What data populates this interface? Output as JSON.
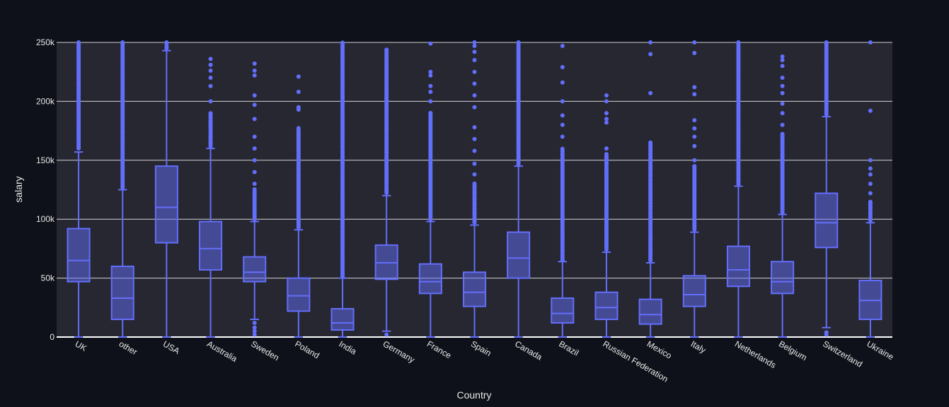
{
  "chart_data": {
    "type": "box",
    "xlabel": "Country",
    "ylabel": "salary",
    "ylim": [
      0,
      250000
    ],
    "yticks": [
      0,
      50000,
      100000,
      150000,
      200000,
      250000
    ],
    "ytick_labels": [
      "0",
      "50k",
      "100k",
      "150k",
      "200k",
      "250k"
    ],
    "grid": true,
    "colors": {
      "box": "#636efa",
      "plot_bg": "#262731",
      "page_bg": "#0e1119",
      "grid": "#ffffff"
    },
    "categories": [
      "UK",
      "other",
      "USA",
      "Australia",
      "Sweden",
      "Poland",
      "India",
      "Germany",
      "France",
      "Spain",
      "Canada",
      "Brazil",
      "Russian Federation",
      "Mexico",
      "Italy",
      "Netherlands",
      "Belgium",
      "Switzerland",
      "Ukraine"
    ],
    "boxes": [
      {
        "category": "UK",
        "lower_fence": 0,
        "q1": 47000,
        "median": 65000,
        "q3": 92000,
        "upper_fence": 157000,
        "outliers_range": [
          160000,
          250000
        ],
        "outliers": []
      },
      {
        "category": "other",
        "lower_fence": 0,
        "q1": 15000,
        "median": 33000,
        "q3": 60000,
        "upper_fence": 125000,
        "outliers_range": [
          127000,
          250000
        ],
        "outliers": []
      },
      {
        "category": "USA",
        "lower_fence": 0,
        "q1": 80000,
        "median": 110000,
        "q3": 145000,
        "upper_fence": 243000,
        "outliers_range": [
          245000,
          250000
        ],
        "outliers": []
      },
      {
        "category": "Australia",
        "lower_fence": 0,
        "q1": 57000,
        "median": 75000,
        "q3": 98000,
        "upper_fence": 160000,
        "outliers_range": [
          162000,
          190000
        ],
        "outliers": [
          200000,
          213000,
          220000,
          226000,
          231000,
          236000
        ]
      },
      {
        "category": "Sweden",
        "lower_fence": 15000,
        "q1": 47000,
        "median": 55000,
        "q3": 68000,
        "upper_fence": 98000,
        "outliers_range": [
          100000,
          125000
        ],
        "outliers": [
          2000,
          5000,
          8000,
          12000,
          130000,
          140000,
          150000,
          160000,
          170000,
          185000,
          197000,
          205000,
          222000,
          226000,
          232000
        ]
      },
      {
        "category": "Poland",
        "lower_fence": 0,
        "q1": 22000,
        "median": 35000,
        "q3": 50000,
        "upper_fence": 91000,
        "outliers_range": [
          93000,
          177000
        ],
        "outliers": [
          193000,
          195000,
          208000,
          221000
        ]
      },
      {
        "category": "India",
        "lower_fence": 0,
        "q1": 6000,
        "median": 12000,
        "q3": 24000,
        "upper_fence": 50000,
        "outliers_range": [
          51000,
          250000
        ],
        "outliers": []
      },
      {
        "category": "Germany",
        "lower_fence": 5000,
        "q1": 49000,
        "median": 63000,
        "q3": 78000,
        "upper_fence": 120000,
        "outliers_range": [
          122000,
          244000
        ],
        "outliers": [
          2000
        ]
      },
      {
        "category": "France",
        "lower_fence": 0,
        "q1": 37000,
        "median": 47000,
        "q3": 62000,
        "upper_fence": 98000,
        "outliers_range": [
          100000,
          190000
        ],
        "outliers": [
          200000,
          208000,
          213000,
          222000,
          225000,
          249000
        ]
      },
      {
        "category": "Spain",
        "lower_fence": 0,
        "q1": 26000,
        "median": 38000,
        "q3": 55000,
        "upper_fence": 95000,
        "outliers_range": [
          97000,
          130000
        ],
        "outliers": [
          138000,
          147000,
          158000,
          168000,
          178000,
          195000,
          205000,
          215000,
          225000,
          235000,
          242000,
          247000,
          250000
        ]
      },
      {
        "category": "Canada",
        "lower_fence": 0,
        "q1": 50000,
        "median": 67000,
        "q3": 89000,
        "upper_fence": 145000,
        "outliers_range": [
          147000,
          250000
        ],
        "outliers": []
      },
      {
        "category": "Brazil",
        "lower_fence": 0,
        "q1": 12000,
        "median": 20000,
        "q3": 33000,
        "upper_fence": 64000,
        "outliers_range": [
          65000,
          160000
        ],
        "outliers": [
          170000,
          180000,
          188000,
          200000,
          216000,
          229000,
          247000
        ]
      },
      {
        "category": "Russian Federation",
        "lower_fence": 0,
        "q1": 15000,
        "median": 25000,
        "q3": 38000,
        "upper_fence": 72000,
        "outliers_range": [
          74000,
          155000
        ],
        "outliers": [
          160000,
          182000,
          185000,
          190000,
          200000,
          205000
        ]
      },
      {
        "category": "Mexico",
        "lower_fence": 0,
        "q1": 11000,
        "median": 19000,
        "q3": 32000,
        "upper_fence": 63000,
        "outliers_range": [
          65000,
          165000
        ],
        "outliers": [
          207000,
          240000,
          250000
        ]
      },
      {
        "category": "Italy",
        "lower_fence": 0,
        "q1": 26000,
        "median": 36000,
        "q3": 52000,
        "upper_fence": 89000,
        "outliers_range": [
          91000,
          145000
        ],
        "outliers": [
          150000,
          162000,
          170000,
          177000,
          184000,
          206000,
          212000,
          241000,
          250000
        ]
      },
      {
        "category": "Netherlands",
        "lower_fence": 0,
        "q1": 43000,
        "median": 57000,
        "q3": 77000,
        "upper_fence": 128000,
        "outliers_range": [
          130000,
          250000
        ],
        "outliers": []
      },
      {
        "category": "Belgium",
        "lower_fence": 0,
        "q1": 37000,
        "median": 47000,
        "q3": 64000,
        "upper_fence": 104000,
        "outliers_range": [
          105000,
          172000
        ],
        "outliers": [
          180000,
          190000,
          198000,
          207000,
          213000,
          220000,
          230000,
          235000,
          238000
        ]
      },
      {
        "category": "Switzerland",
        "lower_fence": 8000,
        "q1": 76000,
        "median": 97000,
        "q3": 122000,
        "upper_fence": 187000,
        "outliers_range": [
          189000,
          250000
        ],
        "outliers": [
          2000,
          4000
        ]
      },
      {
        "category": "Ukraine",
        "lower_fence": 0,
        "q1": 15000,
        "median": 31000,
        "q3": 48000,
        "upper_fence": 97000,
        "outliers_range": [
          99000,
          115000
        ],
        "outliers": [
          122000,
          130000,
          138000,
          143000,
          150000,
          192000,
          250000
        ]
      }
    ]
  }
}
